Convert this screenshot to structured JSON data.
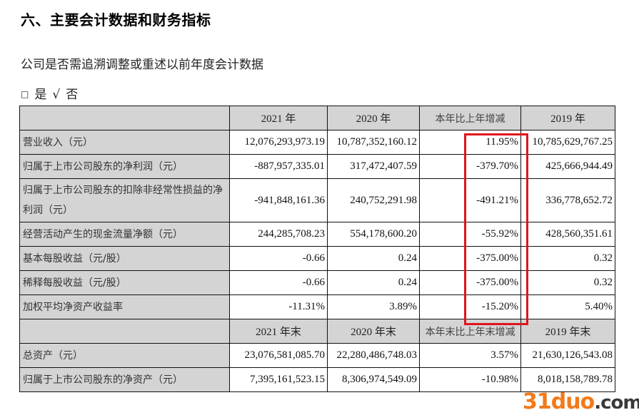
{
  "heading": "六、主要会计数据和财务指标",
  "question": "公司是否需追溯调整或重述以前年度会计数据",
  "choice": {
    "unchecked_box": "□",
    "yes_label": "是",
    "check_mark": "√",
    "no_label": "否"
  },
  "table": {
    "header1": [
      "",
      "2021 年",
      "2020 年",
      "本年比上年增减",
      "2019 年"
    ],
    "rows1": [
      {
        "label": "营业收入（元）",
        "v2021": "12,076,293,973.19",
        "v2020": "10,787,352,160.12",
        "change": "11.95%",
        "v2019": "10,785,629,767.25"
      },
      {
        "label": "归属于上市公司股东的净利润（元）",
        "v2021": "-887,957,335.01",
        "v2020": "317,472,407.59",
        "change": "-379.70%",
        "v2019": "425,666,944.49"
      },
      {
        "label": "归属于上市公司股东的扣除非经常性损益的净利润（元）",
        "v2021": "-941,848,161.36",
        "v2020": "240,752,291.98",
        "change": "-491.21%",
        "v2019": "336,778,652.72"
      },
      {
        "label": "经营活动产生的现金流量净额（元）",
        "v2021": "244,285,708.23",
        "v2020": "554,178,600.20",
        "change": "-55.92%",
        "v2019": "428,560,351.61"
      },
      {
        "label": "基本每股收益（元/股）",
        "v2021": "-0.66",
        "v2020": "0.24",
        "change": "-375.00%",
        "v2019": "0.32"
      },
      {
        "label": "稀释每股收益（元/股）",
        "v2021": "-0.66",
        "v2020": "0.24",
        "change": "-375.00%",
        "v2019": "0.32"
      },
      {
        "label": "加权平均净资产收益率",
        "v2021": "-11.31%",
        "v2020": "3.89%",
        "change": "-15.20%",
        "v2019": "5.40%"
      }
    ],
    "header2": [
      "",
      "2021 年末",
      "2020 年末",
      "本年末比上年末增减",
      "2019 年末"
    ],
    "rows2": [
      {
        "label": "总资产（元）",
        "v2021": "23,076,581,085.70",
        "v2020": "22,280,486,748.03",
        "change": "3.57%",
        "v2019": "21,630,126,543.08"
      },
      {
        "label": "归属于上市公司股东的净资产（元）",
        "v2021": "7,395,161,523.15",
        "v2020": "8,306,974,549.09",
        "change": "-10.98%",
        "v2019": "8,018,158,789.78"
      }
    ]
  },
  "highlight_color": "#e0141c",
  "watermark": {
    "brand": "31duo",
    "tld": ".com",
    "brand_color": "#f27a1a"
  }
}
